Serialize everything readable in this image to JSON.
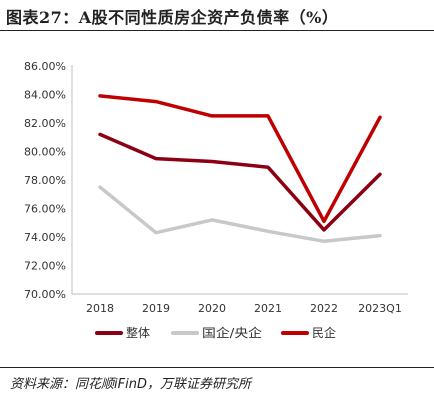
{
  "figure": {
    "title": "图表27：A股不同性质房企资产负债率（%）",
    "source": "资料来源：同花顺iFinD，万联证券研究所"
  },
  "chart_data": {
    "type": "line",
    "x": [
      "2018",
      "2019",
      "2020",
      "2021",
      "2022",
      "2023Q1"
    ],
    "ytick_labels": [
      "70.00%",
      "72.00%",
      "74.00%",
      "76.00%",
      "78.00%",
      "80.00%",
      "82.00%",
      "84.00%",
      "86.00%"
    ],
    "ylim": [
      70,
      86
    ],
    "grid": false,
    "legend_position": "bottom",
    "series": [
      {
        "name": "整体",
        "color": "#8b0012",
        "values": [
          81.2,
          79.5,
          79.3,
          78.9,
          74.5,
          78.4
        ]
      },
      {
        "name": "国企/央企",
        "color": "#c8c8c8",
        "values": [
          77.5,
          74.3,
          75.2,
          74.4,
          73.7,
          74.1
        ]
      },
      {
        "name": "民企",
        "color": "#c00000",
        "values": [
          83.9,
          83.5,
          82.5,
          82.5,
          75.1,
          82.4
        ]
      }
    ]
  }
}
